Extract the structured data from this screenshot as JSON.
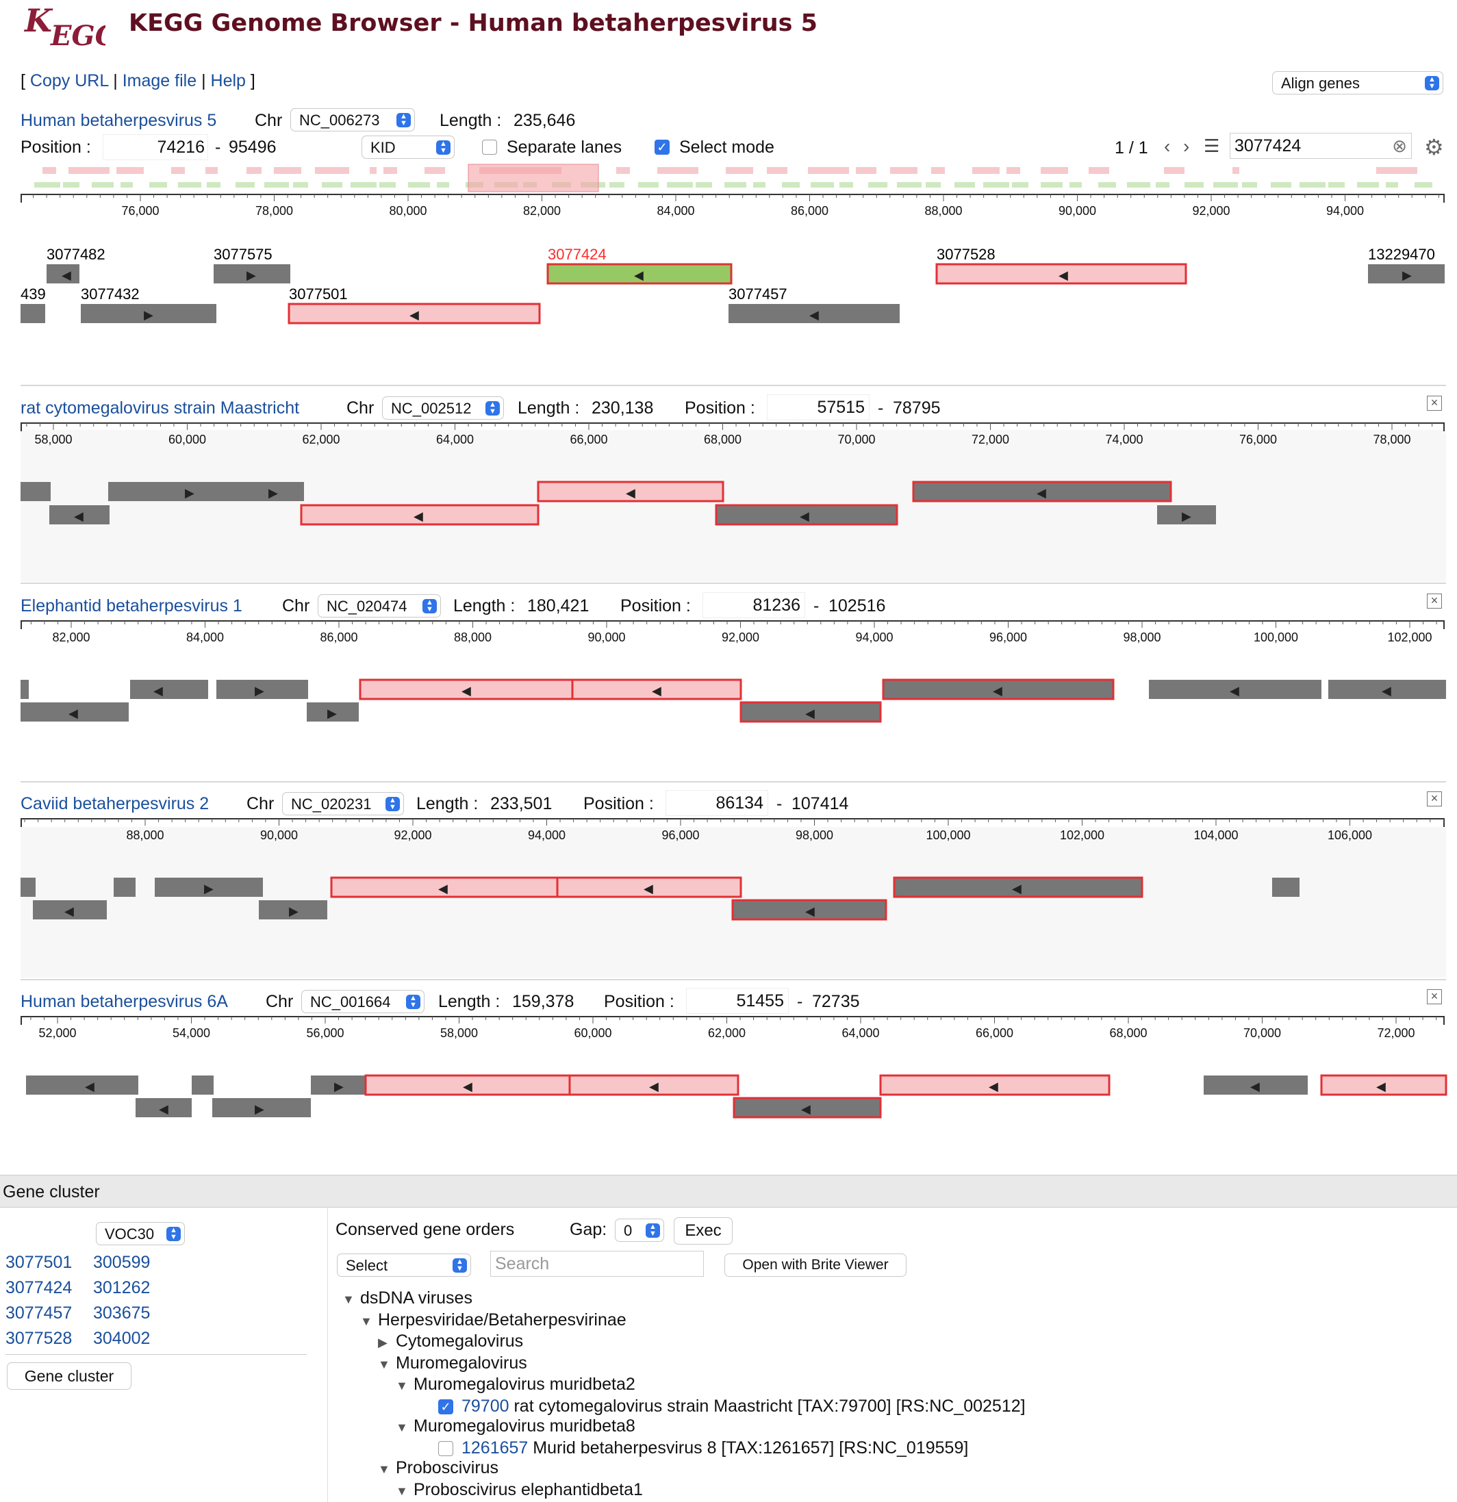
{
  "colors": {
    "accent": "#2f74e8",
    "link": "#1a4f9c",
    "title": "#5e1020",
    "gene_red_fill": "#f8c6c8",
    "gene_red_border": "#e23036",
    "gene_gray": "#777777",
    "gene_green": "#96c864",
    "highlight": "#ff2b2b"
  },
  "header": {
    "logo": "KEGG",
    "title": "KEGG Genome Browser - Human betaherpesvirus 5"
  },
  "toolbar": {
    "bracket_open": "[",
    "copy_url": "Copy URL",
    "sep": "|",
    "image_file": "Image file",
    "help": "Help",
    "bracket_close": "]",
    "align_select": "Align genes"
  },
  "main": {
    "organism": "Human betaherpesvirus 5",
    "chr_label": "Chr",
    "chr_value": "NC_006273",
    "length_label": "Length :",
    "length_value": "235,646",
    "position_label": "Position :",
    "pos_start": "74216",
    "pos_dash": "-",
    "pos_end": "95496",
    "kid_select": "KID",
    "separate_lanes": "Separate lanes",
    "select_mode": "Select mode",
    "page_counter": "1 / 1",
    "search_value": "3077424",
    "axis": {
      "min": 74216,
      "max": 95496,
      "ticks": [
        "76,000",
        "78,000",
        "80,000",
        "82,000",
        "84,000",
        "86,000",
        "88,000",
        "90,000",
        "92,000",
        "94,000"
      ]
    },
    "gene_labels": [
      "3077482",
      "3077575",
      "3077424",
      "3077528",
      "13229470",
      "439",
      "3077432",
      "3077501",
      "3077457"
    ]
  },
  "panels": [
    {
      "organism": "rat cytomegalovirus strain Maastricht",
      "chr_label": "Chr",
      "chr_value": "NC_002512",
      "length_label": "Length :",
      "length_value": "230,138",
      "position_label": "Position :",
      "pos_start": "57515",
      "pos_dash": "-",
      "pos_end": "78795",
      "ticks": [
        "58,000",
        "60,000",
        "62,000",
        "64,000",
        "66,000",
        "68,000",
        "70,000",
        "72,000",
        "74,000",
        "76,000",
        "78,000"
      ]
    },
    {
      "organism": "Elephantid betaherpesvirus 1",
      "chr_label": "Chr",
      "chr_value": "NC_020474",
      "length_label": "Length :",
      "length_value": "180,421",
      "position_label": "Position :",
      "pos_start": "81236",
      "pos_dash": "-",
      "pos_end": "102516",
      "ticks": [
        "82,000",
        "84,000",
        "86,000",
        "88,000",
        "90,000",
        "92,000",
        "94,000",
        "96,000",
        "98,000",
        "100,000",
        "102,000"
      ]
    },
    {
      "organism": "Caviid betaherpesvirus 2",
      "chr_label": "Chr",
      "chr_value": "NC_020231",
      "length_label": "Length :",
      "length_value": "233,501",
      "position_label": "Position :",
      "pos_start": "86134",
      "pos_dash": "-",
      "pos_end": "107414",
      "ticks": [
        "88,000",
        "90,000",
        "92,000",
        "94,000",
        "96,000",
        "98,000",
        "100,000",
        "102,000",
        "104,000",
        "106,000"
      ]
    },
    {
      "organism": "Human betaherpesvirus 6A",
      "chr_label": "Chr",
      "chr_value": "NC_001664",
      "length_label": "Length :",
      "length_value": "159,378",
      "position_label": "Position :",
      "pos_start": "51455",
      "pos_dash": "-",
      "pos_end": "72735",
      "ticks": [
        "52,000",
        "54,000",
        "56,000",
        "58,000",
        "60,000",
        "62,000",
        "64,000",
        "66,000",
        "68,000",
        "70,000",
        "72,000"
      ]
    }
  ],
  "gene_cluster": {
    "header": "Gene cluster",
    "cluster_select": "VOC30",
    "rows": [
      [
        "3077501",
        "300599"
      ],
      [
        "3077424",
        "301262"
      ],
      [
        "3077457",
        "303675"
      ],
      [
        "3077528",
        "304002"
      ]
    ],
    "button": "Gene cluster"
  },
  "conserved": {
    "title": "Conserved gene orders",
    "gap_label": "Gap:",
    "gap_value": "0",
    "exec": "Exec",
    "select": "Select",
    "search_placeholder": "Search",
    "brite_button": "Open with Brite Viewer",
    "tree": [
      {
        "tri": "▼",
        "text": "dsDNA viruses"
      },
      {
        "tri": "▼",
        "text": "Herpesviridae/Betaherpesvirinae"
      },
      {
        "tri": "▶",
        "text": "Cytomegalovirus"
      },
      {
        "tri": "▼",
        "text": "Muromegalovirus"
      },
      {
        "tri": "▼",
        "text": "Muromegalovirus muridbeta2"
      },
      {
        "id": "79700",
        "text": "rat cytomegalovirus strain Maastricht [TAX:79700] [RS:NC_002512]"
      },
      {
        "tri": "▼",
        "text": "Muromegalovirus muridbeta8"
      },
      {
        "id": "1261657",
        "text": "Murid betaherpesvirus 8 [TAX:1261657] [RS:NC_019559]"
      },
      {
        "tri": "▼",
        "text": "Proboscivirus"
      },
      {
        "tri": "▼",
        "text": "Proboscivirus elephantidbeta1"
      }
    ]
  }
}
